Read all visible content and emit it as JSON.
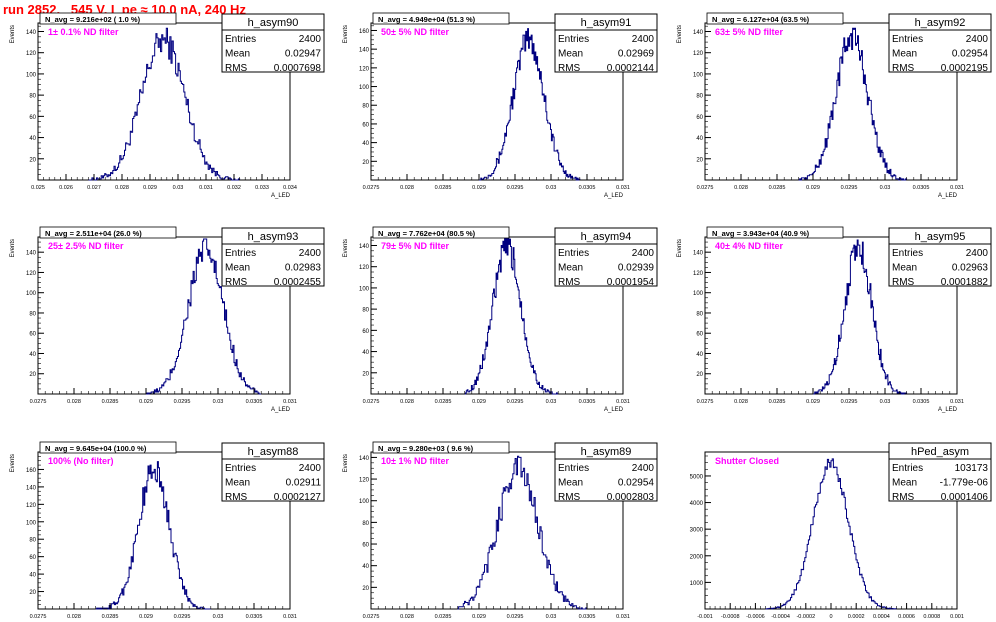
{
  "page": {
    "title": "run 2852,   545 V, I_pe ≈ 10.0 nA, 240 Hz"
  },
  "colors": {
    "hist": "#000080",
    "magenta": "#ff00ff",
    "title_red": "#ff0000"
  },
  "chart_data": [
    {
      "type": "histogram",
      "name": "h_asym90",
      "navg": "N_avg = 9.216e+02 ( 1.0 %)",
      "filter": "1± 0.1% ND filter",
      "stats": {
        "Entries": "2400",
        "Mean": "0.02947",
        "RMS": "0.0007698"
      },
      "ylabel": "Events",
      "xlabel": "A_LED",
      "xlim": [
        0.025,
        0.034
      ],
      "ylim": [
        0,
        148
      ],
      "yticks": [
        20,
        40,
        60,
        80,
        100,
        120,
        140
      ],
      "xtick_values": [
        0.025,
        0.026,
        0.027,
        0.028,
        0.029,
        0.03,
        0.031,
        0.032,
        0.033,
        0.034
      ],
      "xtick_labels": [
        "0.025",
        "0.026",
        "0.027",
        "0.028",
        "0.029",
        "0.03",
        "0.031",
        "0.032",
        "0.033",
        "0.034"
      ],
      "mean": 0.02947,
      "sigma": 0.00077,
      "peak": 132,
      "bins": [
        0.0268,
        0.0322,
        130
      ]
    },
    {
      "type": "histogram",
      "name": "h_asym91",
      "navg": "N_avg = 4.949e+04 (51.3 %)",
      "filter": "50± 5% ND filter",
      "stats": {
        "Entries": "2400",
        "Mean": "0.02969",
        "RMS": "0.0002144"
      },
      "ylabel": "Events",
      "xlabel": "A_LED",
      "xlim": [
        0.0275,
        0.031
      ],
      "ylim": [
        0,
        168
      ],
      "yticks": [
        20,
        40,
        60,
        80,
        100,
        120,
        140,
        160
      ],
      "xtick_values": [
        0.0275,
        0.028,
        0.0285,
        0.029,
        0.0295,
        0.03,
        0.0305,
        0.031
      ],
      "xtick_labels": [
        "0.0275",
        "0.028",
        "0.0285",
        "0.029",
        "0.0295",
        "0.03",
        "0.0305",
        "0.031"
      ],
      "mean": 0.02969,
      "sigma": 0.000214,
      "peak": 150,
      "bins": [
        0.029,
        0.0304,
        110
      ]
    },
    {
      "type": "histogram",
      "name": "h_asym92",
      "navg": "N_avg = 6.127e+04 (63.5 %)",
      "filter": "63± 5% ND filter",
      "stats": {
        "Entries": "2400",
        "Mean": "0.02954",
        "RMS": "0.0002195"
      },
      "ylabel": "Events",
      "xlabel": "A_LED",
      "xlim": [
        0.0275,
        0.031
      ],
      "ylim": [
        0,
        148
      ],
      "yticks": [
        20,
        40,
        60,
        80,
        100,
        120,
        140
      ],
      "xtick_values": [
        0.0275,
        0.028,
        0.0285,
        0.029,
        0.0295,
        0.03,
        0.0305,
        0.031
      ],
      "xtick_labels": [
        "0.0275",
        "0.028",
        "0.0285",
        "0.029",
        "0.0295",
        "0.03",
        "0.0305",
        "0.031"
      ],
      "mean": 0.02954,
      "sigma": 0.00022,
      "peak": 136,
      "bins": [
        0.0288,
        0.0303,
        110
      ]
    },
    {
      "type": "histogram",
      "name": "h_asym93",
      "navg": "N_avg = 2.511e+04 (26.0 %)",
      "filter": "25± 2.5% ND filter",
      "stats": {
        "Entries": "2400",
        "Mean": "0.02983",
        "RMS": "0.0002455"
      },
      "ylabel": "Events",
      "xlabel": "A_LED",
      "xlim": [
        0.0275,
        0.031
      ],
      "ylim": [
        0,
        155
      ],
      "yticks": [
        20,
        40,
        60,
        80,
        100,
        120,
        140
      ],
      "xtick_values": [
        0.0275,
        0.028,
        0.0285,
        0.029,
        0.0295,
        0.03,
        0.0305,
        0.031
      ],
      "xtick_labels": [
        "0.0275",
        "0.028",
        "0.0285",
        "0.029",
        "0.0295",
        "0.03",
        "0.0305",
        "0.031"
      ],
      "mean": 0.02983,
      "sigma": 0.000245,
      "peak": 142,
      "bins": [
        0.029,
        0.0306,
        110
      ]
    },
    {
      "type": "histogram",
      "name": "h_asym94",
      "navg": "N_avg = 7.762e+04 (80.5 %)",
      "filter": "79± 5% ND filter",
      "stats": {
        "Entries": "2400",
        "Mean": "0.02939",
        "RMS": "0.0001954"
      },
      "ylabel": "Events",
      "xlabel": "A_LED",
      "xlim": [
        0.0275,
        0.031
      ],
      "ylim": [
        0,
        148
      ],
      "yticks": [
        20,
        40,
        60,
        80,
        100,
        120,
        140
      ],
      "xtick_values": [
        0.0275,
        0.028,
        0.0285,
        0.029,
        0.0295,
        0.03,
        0.0305,
        0.031
      ],
      "xtick_labels": [
        "0.0275",
        "0.028",
        "0.0285",
        "0.029",
        "0.0295",
        "0.03",
        "0.0305",
        "0.031"
      ],
      "mean": 0.02939,
      "sigma": 0.000195,
      "peak": 138,
      "bins": [
        0.0288,
        0.0301,
        110
      ]
    },
    {
      "type": "histogram",
      "name": "h_asym95",
      "navg": "N_avg = 3.943e+04 (40.9 %)",
      "filter": "40± 4% ND filter",
      "stats": {
        "Entries": "2400",
        "Mean": "0.02963",
        "RMS": "0.0001882"
      },
      "ylabel": "Events",
      "xlabel": "A_LED",
      "xlim": [
        0.0275,
        0.031
      ],
      "ylim": [
        0,
        155
      ],
      "yticks": [
        20,
        40,
        60,
        80,
        100,
        120,
        140
      ],
      "xtick_values": [
        0.0275,
        0.028,
        0.0285,
        0.029,
        0.0295,
        0.03,
        0.0305,
        0.031
      ],
      "xtick_labels": [
        "0.0275",
        "0.028",
        "0.0285",
        "0.029",
        "0.0295",
        "0.03",
        "0.0305",
        "0.031"
      ],
      "mean": 0.02963,
      "sigma": 0.000188,
      "peak": 145,
      "bins": [
        0.029,
        0.0303,
        110
      ]
    },
    {
      "type": "histogram",
      "name": "h_asym88",
      "navg": "N_avg = 9.645e+04 (100.0 %)",
      "filter": "100% (No filter)",
      "stats": {
        "Entries": "2400",
        "Mean": "0.02911",
        "RMS": "0.0002127"
      },
      "ylabel": "Events",
      "xlabel": "A_LED",
      "xlim": [
        0.0275,
        0.031
      ],
      "ylim": [
        0,
        180
      ],
      "yticks": [
        20,
        40,
        60,
        80,
        100,
        120,
        140,
        160
      ],
      "xtick_values": [
        0.0275,
        0.028,
        0.0285,
        0.029,
        0.0295,
        0.03,
        0.0305,
        0.031
      ],
      "xtick_labels": [
        "0.0275",
        "0.028",
        "0.0285",
        "0.029",
        "0.0295",
        "0.03",
        "0.0305",
        "0.031"
      ],
      "mean": 0.02911,
      "sigma": 0.000213,
      "peak": 160,
      "bins": [
        0.0283,
        0.0299,
        110
      ]
    },
    {
      "type": "histogram",
      "name": "h_asym89",
      "navg": "N_avg = 9.280e+03 ( 9.6 %)",
      "filter": "10± 1% ND filter",
      "stats": {
        "Entries": "2400",
        "Mean": "0.02954",
        "RMS": "0.0002803"
      },
      "ylabel": "Events",
      "xlabel": "A_LED",
      "xlim": [
        0.0275,
        0.031
      ],
      "ylim": [
        0,
        145
      ],
      "yticks": [
        20,
        40,
        60,
        80,
        100,
        120,
        140
      ],
      "xtick_values": [
        0.0275,
        0.028,
        0.0285,
        0.029,
        0.0295,
        0.03,
        0.0305,
        0.031
      ],
      "xtick_labels": [
        "0.0275",
        "0.028",
        "0.0285",
        "0.029",
        "0.0295",
        "0.03",
        "0.0305",
        "0.031"
      ],
      "mean": 0.02954,
      "sigma": 0.00028,
      "peak": 130,
      "bins": [
        0.0287,
        0.0305,
        110
      ]
    },
    {
      "type": "histogram",
      "name": "hPed_asym",
      "navg": "",
      "filter": "Shutter Closed",
      "stats": {
        "Entries": "103173",
        "Mean": "-1.779e-06",
        "RMS": "0.0001406"
      },
      "ylabel": "",
      "xlabel": "",
      "xlim": [
        -0.001,
        0.001
      ],
      "ylim": [
        0,
        5900
      ],
      "yticks": [
        1000,
        2000,
        3000,
        4000,
        5000
      ],
      "xtick_values": [
        -0.001,
        -0.0008,
        -0.0006,
        -0.0004,
        -0.0002,
        0,
        0.0002,
        0.0004,
        0.0006,
        0.0008,
        0.001
      ],
      "xtick_labels": [
        "-0.001",
        "-0.0008",
        "-0.0006",
        "-0.0004",
        "-0.0002",
        "0",
        "0.0002",
        "0.0004",
        "0.0006",
        "0.0008",
        "0.001"
      ],
      "mean": -2e-06,
      "sigma": 0.00014,
      "peak": 5500,
      "bins": [
        -0.00052,
        0.00052,
        110
      ]
    }
  ]
}
